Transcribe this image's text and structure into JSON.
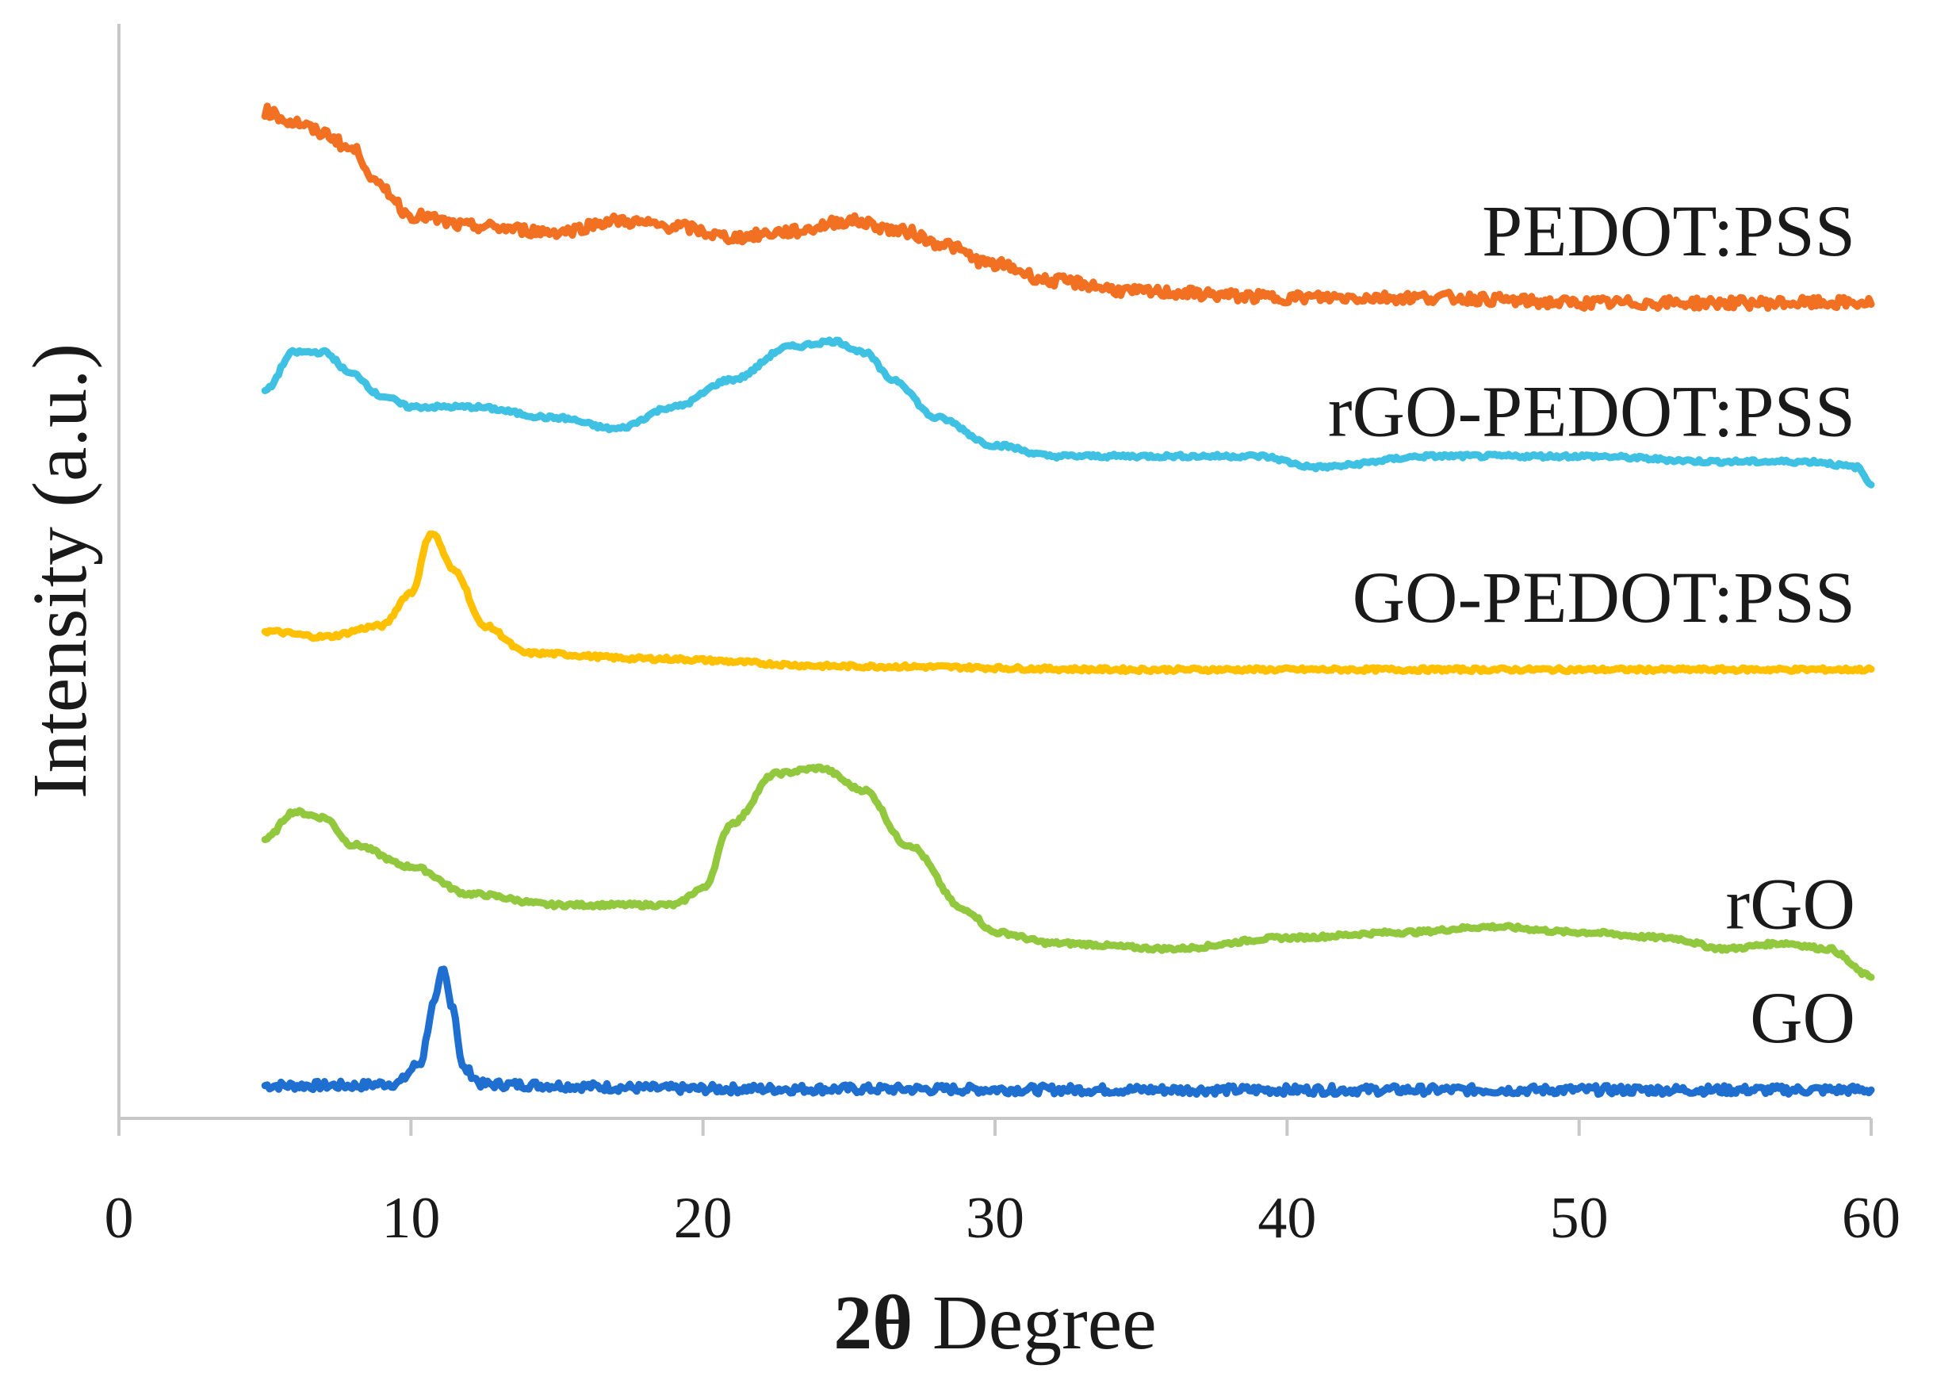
{
  "chart_data": {
    "type": "line",
    "title": "",
    "xlabel_prefix": "2θ",
    "xlabel_suffix": " Degree",
    "ylabel": "Intensity (a.u.)",
    "xlim": [
      0,
      60
    ],
    "ylim": [
      0,
      100
    ],
    "x_ticks": [
      0,
      10,
      20,
      30,
      40,
      50,
      60
    ],
    "y_ticks_shown": false,
    "grid": false,
    "legend": "inline labels at right end of each curve",
    "series": [
      {
        "name": "GO",
        "color": "#1f6fd1",
        "noise": 0.8,
        "points": [
          [
            5,
            3
          ],
          [
            8,
            3
          ],
          [
            9.5,
            3.2
          ],
          [
            10.3,
            5
          ],
          [
            10.8,
            10.5
          ],
          [
            11.1,
            13.5
          ],
          [
            11.4,
            10.5
          ],
          [
            11.8,
            4.5
          ],
          [
            12.5,
            3.1
          ],
          [
            20,
            2.7
          ],
          [
            40,
            2.6
          ],
          [
            60,
            2.6
          ]
        ]
      },
      {
        "name": "rGO",
        "color": "#92c83e",
        "noise": 0.35,
        "points": [
          [
            5,
            25.5
          ],
          [
            6,
            28
          ],
          [
            7,
            27.5
          ],
          [
            8,
            25
          ],
          [
            10,
            23
          ],
          [
            12,
            20.5
          ],
          [
            15,
            19.5
          ],
          [
            19,
            19.5
          ],
          [
            20,
            21
          ],
          [
            21,
            27
          ],
          [
            22.5,
            31.5
          ],
          [
            24,
            32
          ],
          [
            25.5,
            30
          ],
          [
            27,
            25
          ],
          [
            29,
            19
          ],
          [
            30,
            17
          ],
          [
            32,
            16
          ],
          [
            36,
            15.5
          ],
          [
            40,
            16.5
          ],
          [
            44,
            17
          ],
          [
            47,
            17.5
          ],
          [
            50,
            17
          ],
          [
            53,
            16.5
          ],
          [
            55,
            15.5
          ],
          [
            57,
            16
          ],
          [
            58.5,
            15.5
          ],
          [
            60,
            13
          ]
        ]
      },
      {
        "name": "GO-PEDOT:PSS",
        "color": "#ffc000",
        "noise": 0.35,
        "points": [
          [
            5,
            44.5
          ],
          [
            7,
            44
          ],
          [
            9,
            45
          ],
          [
            10,
            48
          ],
          [
            10.7,
            53.5
          ],
          [
            11.5,
            50
          ],
          [
            12.5,
            45
          ],
          [
            14,
            42.5
          ],
          [
            18,
            42
          ],
          [
            25,
            41.3
          ],
          [
            35,
            41
          ],
          [
            50,
            41
          ],
          [
            60,
            41
          ]
        ]
      },
      {
        "name": "rGO-PEDOT:PSS",
        "color": "#3fc1e3",
        "noise": 0.35,
        "points": [
          [
            5,
            66.5
          ],
          [
            6,
            70
          ],
          [
            7,
            70
          ],
          [
            8,
            68
          ],
          [
            9,
            66
          ],
          [
            10,
            65
          ],
          [
            12,
            65
          ],
          [
            15,
            64
          ],
          [
            17,
            63
          ],
          [
            19,
            65
          ],
          [
            21,
            67.5
          ],
          [
            23,
            70.5
          ],
          [
            24.5,
            71
          ],
          [
            25.5,
            70
          ],
          [
            26.5,
            67.5
          ],
          [
            28,
            64
          ],
          [
            30,
            61.5
          ],
          [
            32,
            60.5
          ],
          [
            36,
            60.5
          ],
          [
            39,
            60.5
          ],
          [
            41,
            59.5
          ],
          [
            45,
            60.5
          ],
          [
            50,
            60.5
          ],
          [
            55,
            60
          ],
          [
            58,
            60
          ],
          [
            59.5,
            59.5
          ],
          [
            60,
            58
          ]
        ]
      },
      {
        "name": "PEDOT:PSS",
        "color": "#f27022",
        "noise": 1.0,
        "points": [
          [
            5,
            92
          ],
          [
            6,
            91
          ],
          [
            7,
            90
          ],
          [
            8,
            88.5
          ],
          [
            9,
            85
          ],
          [
            10,
            82.5
          ],
          [
            12,
            81.5
          ],
          [
            15,
            81
          ],
          [
            17,
            82
          ],
          [
            19,
            81.5
          ],
          [
            21,
            80.5
          ],
          [
            23,
            81
          ],
          [
            25,
            82
          ],
          [
            27,
            81
          ],
          [
            28,
            80
          ],
          [
            30,
            78
          ],
          [
            32,
            76.5
          ],
          [
            35,
            75.5
          ],
          [
            40,
            75
          ],
          [
            45,
            75
          ],
          [
            50,
            74.5
          ],
          [
            55,
            74.5
          ],
          [
            60,
            74.5
          ]
        ]
      }
    ]
  }
}
